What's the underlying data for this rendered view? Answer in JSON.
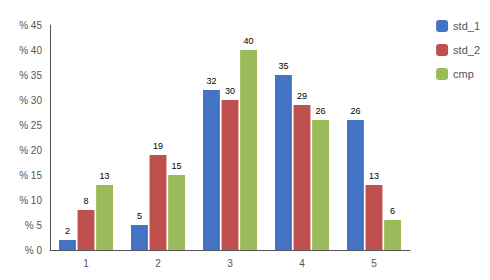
{
  "chart_data": {
    "type": "bar",
    "categories": [
      "1",
      "2",
      "3",
      "4",
      "5"
    ],
    "series": [
      {
        "name": "std_1",
        "color": "#4472C4",
        "values": [
          2,
          5,
          32,
          35,
          26
        ]
      },
      {
        "name": "std_2",
        "color": "#C0504D",
        "values": [
          8,
          19,
          30,
          29,
          13
        ]
      },
      {
        "name": "cmp",
        "color": "#9BBB59",
        "values": [
          13,
          15,
          40,
          26,
          6
        ]
      }
    ],
    "ylim": [
      0,
      45
    ],
    "yticks": [
      {
        "value": 0,
        "label": "% 0"
      },
      {
        "value": 5,
        "label": "% 5"
      },
      {
        "value": 10,
        "label": "% 10"
      },
      {
        "value": 15,
        "label": "% 15"
      },
      {
        "value": 20,
        "label": "% 20"
      },
      {
        "value": 25,
        "label": "% 25"
      },
      {
        "value": 30,
        "label": "% 30"
      },
      {
        "value": 35,
        "label": "% 35"
      },
      {
        "value": 40,
        "label": "% 40"
      },
      {
        "value": 45,
        "label": "% 45"
      }
    ],
    "grid": false,
    "legend": "upper right",
    "data_labels": true
  }
}
